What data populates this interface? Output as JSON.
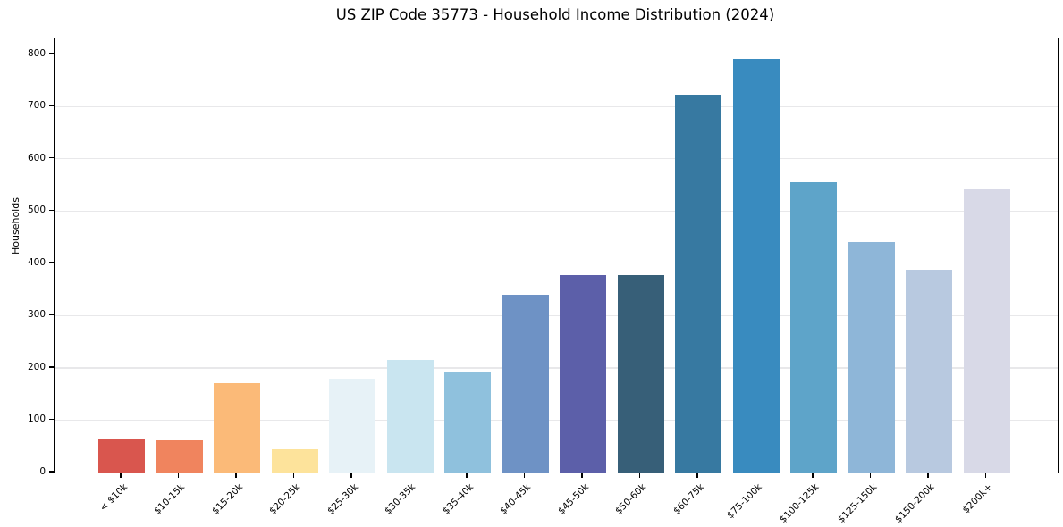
{
  "title": "US ZIP Code 35773 - Household Income Distribution (2024)",
  "chart_data": {
    "type": "bar",
    "title": "US ZIP Code 35773 - Household Income Distribution (2024)",
    "xlabel": "",
    "ylabel": "Households",
    "categories": [
      "< $10k",
      "$10-15k",
      "$15-20k",
      "$20-25k",
      "$25-30k",
      "$30-35k",
      "$35-40k",
      "$40-45k",
      "$45-50k",
      "$50-60k",
      "$60-75k",
      "$75-100k",
      "$100-125k",
      "$125-150k",
      "$150-200k",
      "$200k+"
    ],
    "values": [
      65,
      62,
      171,
      45,
      180,
      216,
      192,
      340,
      378,
      378,
      722,
      790,
      555,
      440,
      388,
      542
    ],
    "bar_colors": [
      "#d9564e",
      "#f0845e",
      "#fbba78",
      "#fde39b",
      "#e7f2f7",
      "#c9e5f0",
      "#8fc1dd",
      "#6e92c5",
      "#5c5fa9",
      "#375f78",
      "#3779a1",
      "#398bbf",
      "#5ea4c9",
      "#8eb6d8",
      "#b8c9e0",
      "#d8d9e7"
    ],
    "ylim": [
      0,
      830
    ],
    "yticks": [
      0,
      100,
      200,
      300,
      400,
      500,
      600,
      700,
      800
    ],
    "grid": "horizontal",
    "grid_color": "#e8e8ea",
    "spine_color": "#000000",
    "background_color": "#ffffff",
    "legend": "none",
    "xtick_rotation": 45
  }
}
